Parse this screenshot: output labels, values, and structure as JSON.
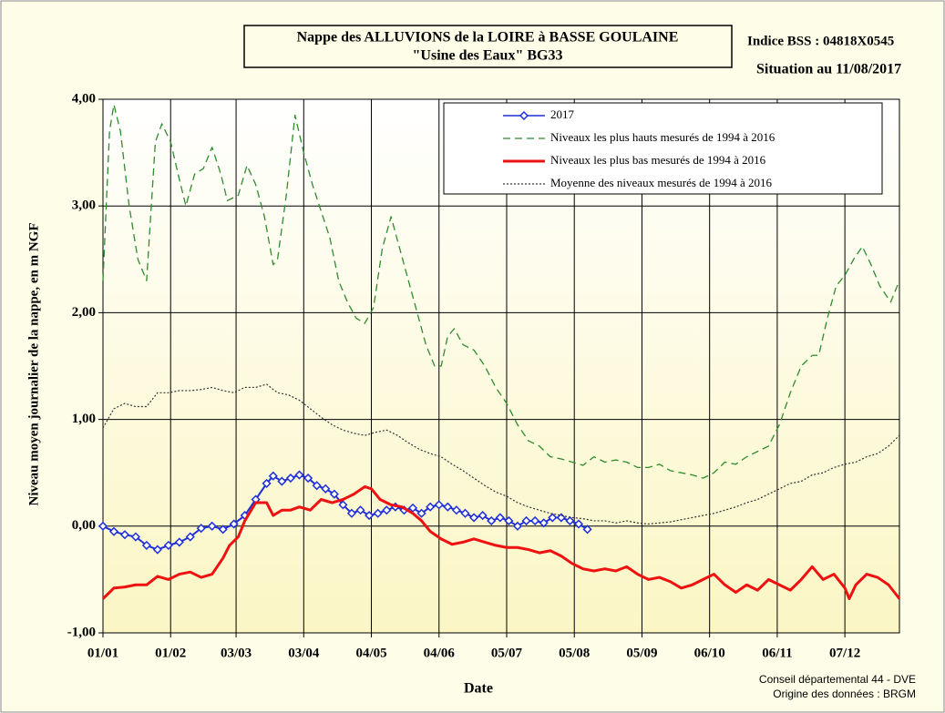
{
  "chart_data": {
    "type": "line",
    "title": "Nappe des ALLUVIONS  de la LOIRE à BASSE GOULAINE",
    "subtitle": "\"Usine des Eaux\"  BG33",
    "annotations": [
      "Indice BSS : 04818X0545",
      "Situation au 11/08/2017"
    ],
    "source": [
      "Conseil départemental 44 - DVE",
      "Origine des données : BRGM"
    ],
    "x_label": "Date",
    "y_label": "Niveau moyen journalier de la nappe, en m NGF",
    "xlim": [
      0,
      365
    ],
    "xticks": [
      {
        "value": 0,
        "label": "01/01"
      },
      {
        "value": 31,
        "label": "01/02"
      },
      {
        "value": 61,
        "label": "03/03"
      },
      {
        "value": 92,
        "label": "03/04"
      },
      {
        "value": 123,
        "label": "04/05"
      },
      {
        "value": 154,
        "label": "04/06"
      },
      {
        "value": 185,
        "label": "05/07"
      },
      {
        "value": 216,
        "label": "05/08"
      },
      {
        "value": 247,
        "label": "05/09"
      },
      {
        "value": 278,
        "label": "06/10"
      },
      {
        "value": 309,
        "label": "06/11"
      },
      {
        "value": 340,
        "label": "07/12"
      }
    ],
    "ylim": [
      -1,
      4
    ],
    "yticks": [
      {
        "value": -1,
        "label": "-1,00"
      },
      {
        "value": 0,
        "label": "0,00"
      },
      {
        "value": 1,
        "label": "1,00"
      },
      {
        "value": 2,
        "label": "2,00"
      },
      {
        "value": 3,
        "label": "3,00"
      },
      {
        "value": 4,
        "label": "4,00"
      }
    ],
    "grid": true,
    "series": [
      {
        "name": "2017",
        "color": "#1f2fd8",
        "line_style": "solid",
        "marker": "diamond",
        "x": [
          0,
          5,
          10,
          15,
          20,
          25,
          30,
          35,
          40,
          45,
          50,
          55,
          60,
          65,
          70,
          75,
          78,
          82,
          86,
          90,
          94,
          98,
          102,
          106,
          110,
          114,
          118,
          122,
          126,
          130,
          134,
          138,
          142,
          146,
          150,
          154,
          158,
          162,
          166,
          170,
          174,
          178,
          182,
          186,
          190,
          194,
          198,
          202,
          206,
          210,
          214,
          218,
          222
        ],
        "values": [
          0.0,
          -0.05,
          -0.08,
          -0.1,
          -0.18,
          -0.22,
          -0.18,
          -0.15,
          -0.1,
          -0.02,
          0.0,
          -0.03,
          0.02,
          0.1,
          0.25,
          0.4,
          0.47,
          0.42,
          0.45,
          0.48,
          0.45,
          0.38,
          0.35,
          0.3,
          0.2,
          0.12,
          0.15,
          0.1,
          0.12,
          0.15,
          0.18,
          0.15,
          0.17,
          0.12,
          0.18,
          0.2,
          0.18,
          0.15,
          0.12,
          0.08,
          0.1,
          0.05,
          0.08,
          0.05,
          0.0,
          0.05,
          0.05,
          0.03,
          0.08,
          0.08,
          0.05,
          0.02,
          -0.03
        ]
      },
      {
        "name": "Niveaux les plus hauts mesurés de 1994 à 2016",
        "color": "#2e8b2e",
        "line_style": "dashed",
        "marker": "none",
        "x": [
          0,
          3,
          5,
          8,
          12,
          16,
          20,
          24,
          27,
          31,
          35,
          38,
          42,
          46,
          50,
          54,
          57,
          62,
          66,
          70,
          74,
          78,
          80,
          84,
          88,
          92,
          96,
          100,
          104,
          108,
          112,
          116,
          120,
          124,
          128,
          132,
          136,
          140,
          144,
          148,
          152,
          155,
          158,
          161,
          165,
          170,
          175,
          180,
          185,
          190,
          195,
          200,
          205,
          210,
          215,
          220,
          225,
          230,
          235,
          240,
          245,
          250,
          255,
          260,
          265,
          270,
          275,
          280,
          285,
          290,
          295,
          300,
          305,
          310,
          315,
          320,
          325,
          328,
          332,
          336,
          340,
          344,
          348,
          352,
          356,
          361,
          365
        ],
        "values": [
          2.3,
          3.7,
          3.95,
          3.7,
          3.0,
          2.5,
          2.3,
          3.6,
          3.77,
          3.6,
          3.25,
          3.0,
          3.3,
          3.35,
          3.55,
          3.3,
          3.05,
          3.1,
          3.38,
          3.2,
          2.9,
          2.45,
          2.5,
          3.1,
          3.85,
          3.5,
          3.2,
          2.95,
          2.7,
          2.3,
          2.1,
          1.95,
          1.9,
          2.05,
          2.6,
          2.9,
          2.6,
          2.3,
          2.0,
          1.7,
          1.5,
          1.5,
          1.78,
          1.85,
          1.7,
          1.65,
          1.5,
          1.3,
          1.15,
          0.95,
          0.8,
          0.75,
          0.65,
          0.63,
          0.6,
          0.57,
          0.65,
          0.6,
          0.62,
          0.6,
          0.55,
          0.55,
          0.58,
          0.52,
          0.5,
          0.48,
          0.45,
          0.5,
          0.6,
          0.58,
          0.65,
          0.7,
          0.75,
          0.95,
          1.25,
          1.5,
          1.6,
          1.6,
          1.95,
          2.25,
          2.35,
          2.5,
          2.62,
          2.45,
          2.25,
          2.1,
          2.3
        ]
      },
      {
        "name": "Niveaux les plus bas mesurés de 1994 à 2016",
        "color": "#ee1111",
        "line_style": "solid",
        "marker": "none",
        "x": [
          0,
          5,
          10,
          15,
          20,
          25,
          30,
          35,
          40,
          45,
          50,
          55,
          58,
          62,
          65,
          70,
          75,
          78,
          82,
          86,
          90,
          95,
          100,
          105,
          110,
          115,
          120,
          123,
          127,
          132,
          137,
          142,
          146,
          150,
          155,
          160,
          165,
          170,
          175,
          180,
          185,
          190,
          195,
          200,
          205,
          210,
          215,
          220,
          225,
          230,
          235,
          240,
          245,
          250,
          255,
          260,
          265,
          270,
          275,
          280,
          285,
          290,
          295,
          300,
          305,
          310,
          315,
          320,
          325,
          330,
          335,
          340,
          342,
          345,
          350,
          355,
          360,
          365
        ],
        "values": [
          -0.68,
          -0.58,
          -0.57,
          -0.55,
          -0.55,
          -0.47,
          -0.5,
          -0.45,
          -0.43,
          -0.48,
          -0.45,
          -0.3,
          -0.18,
          -0.1,
          0.05,
          0.22,
          0.22,
          0.1,
          0.15,
          0.15,
          0.18,
          0.15,
          0.25,
          0.22,
          0.25,
          0.3,
          0.37,
          0.35,
          0.25,
          0.2,
          0.18,
          0.12,
          0.05,
          -0.05,
          -0.12,
          -0.17,
          -0.15,
          -0.12,
          -0.15,
          -0.18,
          -0.2,
          -0.2,
          -0.22,
          -0.25,
          -0.23,
          -0.28,
          -0.35,
          -0.4,
          -0.42,
          -0.4,
          -0.42,
          -0.38,
          -0.45,
          -0.5,
          -0.48,
          -0.52,
          -0.58,
          -0.55,
          -0.5,
          -0.45,
          -0.55,
          -0.62,
          -0.55,
          -0.6,
          -0.5,
          -0.55,
          -0.6,
          -0.5,
          -0.38,
          -0.5,
          -0.45,
          -0.58,
          -0.68,
          -0.55,
          -0.45,
          -0.48,
          -0.55,
          -0.68
        ]
      },
      {
        "name": "Moyenne des niveaux mesurés de 1994 à 2016",
        "color": "#333333",
        "line_style": "dotted",
        "marker": "none",
        "x": [
          0,
          5,
          10,
          15,
          20,
          25,
          30,
          35,
          40,
          45,
          50,
          55,
          60,
          65,
          70,
          75,
          80,
          85,
          90,
          95,
          100,
          105,
          110,
          115,
          120,
          125,
          130,
          135,
          140,
          145,
          150,
          155,
          160,
          165,
          170,
          175,
          180,
          185,
          190,
          195,
          200,
          205,
          210,
          215,
          220,
          225,
          230,
          235,
          240,
          245,
          250,
          255,
          260,
          265,
          270,
          275,
          280,
          285,
          290,
          295,
          300,
          305,
          310,
          315,
          320,
          325,
          330,
          335,
          340,
          345,
          350,
          355,
          360,
          365
        ],
        "values": [
          0.92,
          1.1,
          1.15,
          1.12,
          1.12,
          1.25,
          1.25,
          1.27,
          1.27,
          1.28,
          1.3,
          1.27,
          1.25,
          1.3,
          1.3,
          1.33,
          1.25,
          1.23,
          1.18,
          1.1,
          1.02,
          0.95,
          0.9,
          0.87,
          0.85,
          0.88,
          0.9,
          0.85,
          0.78,
          0.72,
          0.68,
          0.65,
          0.58,
          0.52,
          0.45,
          0.38,
          0.32,
          0.28,
          0.22,
          0.18,
          0.15,
          0.12,
          0.1,
          0.08,
          0.07,
          0.05,
          0.05,
          0.03,
          0.05,
          0.03,
          0.02,
          0.03,
          0.04,
          0.06,
          0.08,
          0.1,
          0.12,
          0.15,
          0.18,
          0.22,
          0.25,
          0.3,
          0.35,
          0.4,
          0.42,
          0.48,
          0.5,
          0.55,
          0.58,
          0.6,
          0.65,
          0.68,
          0.75,
          0.85
        ]
      }
    ]
  }
}
